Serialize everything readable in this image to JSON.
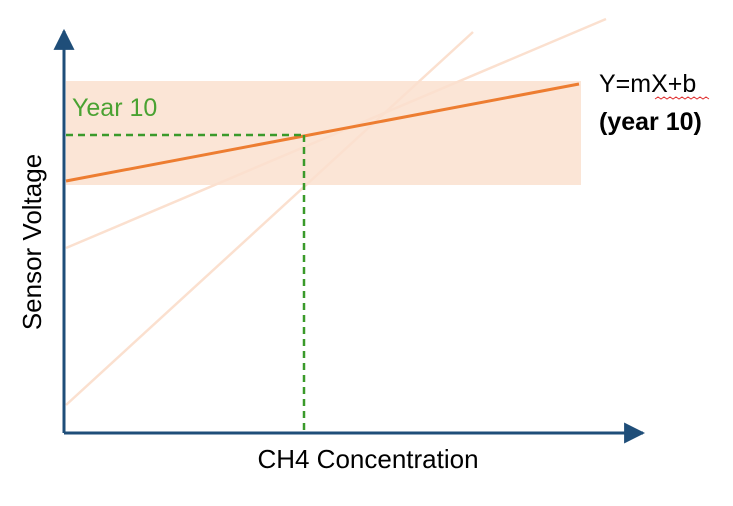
{
  "diagram": {
    "y_axis_label": "Sensor Voltage",
    "x_axis_label": "CH4 Concentration",
    "year_label": "Year 10",
    "equation": "Y=mX+b",
    "equation_note": "(year 10)",
    "colors": {
      "axis": "#1f4e79",
      "main_line": "#ed7d31",
      "faded_line": "#f8cbad",
      "band": "#fbe5d6",
      "dashed": "#3a9a2a",
      "year_label": "#4aa232",
      "squiggle": "#e03030"
    }
  }
}
